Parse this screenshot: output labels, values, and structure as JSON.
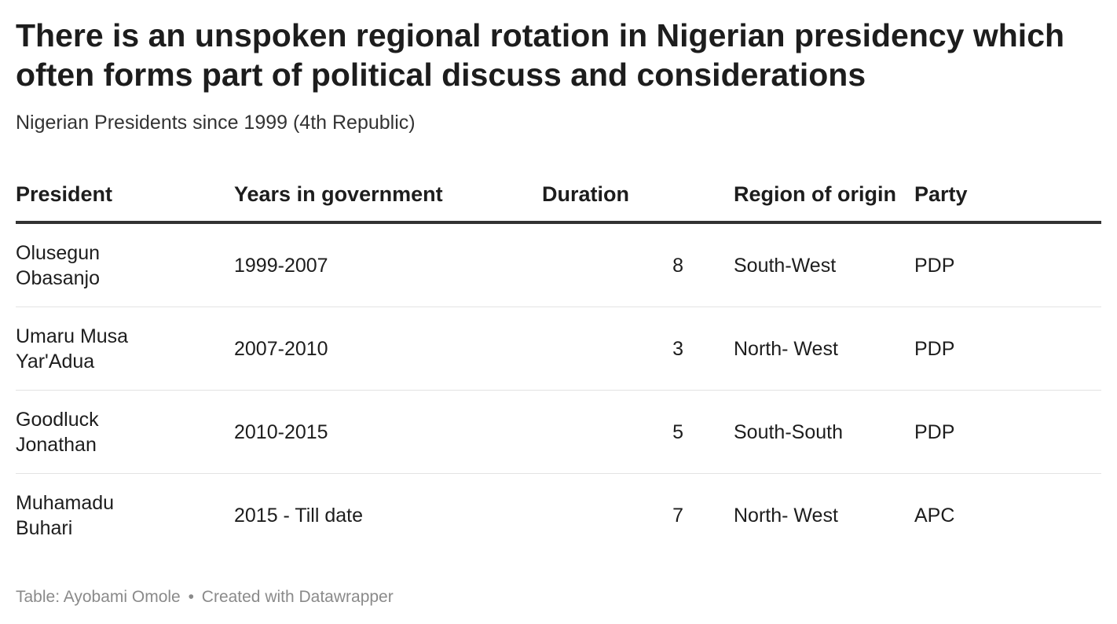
{
  "title": "There is an unspoken regional rotation in Nigerian presidency which often forms part of political discuss and considerations",
  "subtitle": "Nigerian Presidents since 1999 (4th Republic)",
  "chart_data": {
    "type": "table",
    "columns": [
      "President",
      "Years in government",
      "Duration",
      "Region of origin",
      "Party"
    ],
    "rows": [
      {
        "president": "Olusegun Obasanjo",
        "years": "1999-2007",
        "duration": 8,
        "region": "South-West",
        "party": "PDP"
      },
      {
        "president": "Umaru Musa Yar'Adua",
        "years": "2007-2010",
        "duration": 3,
        "region": "North- West",
        "party": "PDP"
      },
      {
        "president": "Goodluck Jonathan",
        "years": "2010-2015",
        "duration": 5,
        "region": "South-South",
        "party": "PDP"
      },
      {
        "president": "Muhamadu Buhari",
        "years": "2015 - Till date",
        "duration": 7,
        "region": "North- West",
        "party": "APC"
      }
    ]
  },
  "footer": {
    "source": "Table: Ayobami Omole",
    "separator": "•",
    "credit": "Created with Datawrapper"
  }
}
